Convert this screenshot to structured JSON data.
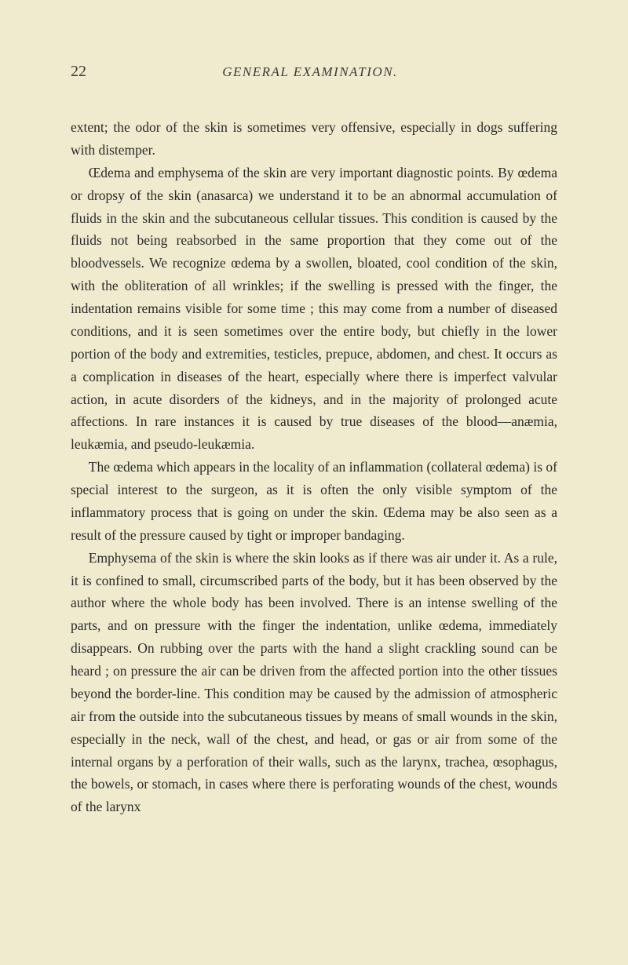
{
  "page": {
    "number": "22",
    "running_title": "GENERAL EXAMINATION.",
    "background_color": "#f0ebce",
    "text_color": "#2a2a2a",
    "font_family": "Times New Roman",
    "body_fontsize": 17.5,
    "header_fontsize": 17,
    "page_number_fontsize": 20,
    "line_height": 1.65
  },
  "paragraphs": [
    {
      "text": "extent; the odor of the skin is sometimes very offensive, especially in dogs suffering with distemper.",
      "indent": false
    },
    {
      "text": "Œdema and emphysema of the skin are very important diagnostic points. By œdema or dropsy of the skin (anasarca) we understand it to be an abnormal accumulation of fluids in the skin and the subcutaneous cellular tissues. This condition is caused by the fluids not being reabsorbed in the same proportion that they come out of the bloodvessels. We recognize œdema by a swollen, bloated, cool condition of the skin, with the obliteration of all wrinkles; if the swelling is pressed with the finger, the indentation remains visible for some time ; this may come from a number of diseased conditions, and it is seen sometimes over the entire body, but chiefly in the lower portion of the body and extremities, testicles, prepuce, abdomen, and chest. It occurs as a complication in diseases of the heart, especially where there is imperfect valvular action, in acute disorders of the kidneys, and in the majority of prolonged acute affections. In rare instances it is caused by true diseases of the blood—anæmia, leukæmia, and pseudo-leukæmia.",
      "indent": true
    },
    {
      "text": "The œdema which appears in the locality of an inflammation (collateral œdema) is of special interest to the surgeon, as it is often the only visible symptom of the inflammatory process that is going on under the skin. Œdema may be also seen as a result of the pressure caused by tight or improper bandaging.",
      "indent": true
    },
    {
      "text": "Emphysema of the skin is where the skin looks as if there was air under it. As a rule, it is confined to small, circumscribed parts of the body, but it has been observed by the author where the whole body has been involved. There is an intense swelling of the parts, and on pressure with the finger the indentation, unlike œdema, immediately disappears. On rubbing over the parts with the hand a slight crackling sound can be heard ; on pressure the air can be driven from the affected portion into the other tissues beyond the border-line. This condition may be caused by the admission of atmospheric air from the outside into the subcutaneous tissues by means of small wounds in the skin, especially in the neck, wall of the chest, and head, or gas or air from some of the internal organs by a perforation of their walls, such as the larynx, trachea, œsophagus, the bowels, or stomach, in cases where there is perforating wounds of the chest, wounds of the larynx",
      "indent": true
    }
  ]
}
